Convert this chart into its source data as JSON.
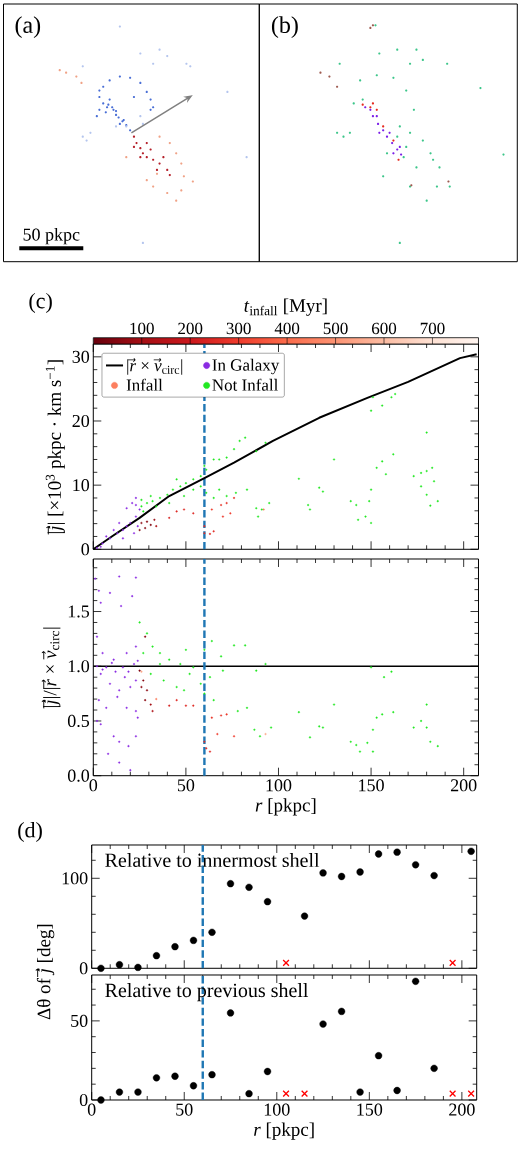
{
  "chart_data": [
    {
      "type": "other",
      "title": "(a)",
      "annotations": [
        "50 pkpc"
      ]
    },
    {
      "type": "other",
      "title": "(b)"
    },
    {
      "type": "scatter",
      "title": "(c)",
      "ylabel": "|*j⃗*| [×10$^{3}$ pkpc · km s$^{−1}$]",
      "clabel": "*t*$_{infall}$ [Myr]",
      "clim": [
        0,
        795
      ],
      "cticks": [
        100,
        200,
        300,
        400,
        500,
        600,
        700
      ],
      "xlim": [
        0,
        208
      ],
      "xticks": [
        0,
        {
          "value": 10,
          "label": null
        },
        {
          "value": 20,
          "label": null
        },
        {
          "value": 30,
          "label": null
        },
        {
          "value": 40,
          "label": null
        },
        50,
        {
          "value": 60,
          "label": null
        },
        {
          "value": 70,
          "label": null
        },
        {
          "value": 80,
          "label": null
        },
        {
          "value": 90,
          "label": null
        },
        100,
        {
          "value": 110,
          "label": null
        },
        {
          "value": 120,
          "label": null
        },
        {
          "value": 130,
          "label": null
        },
        {
          "value": 140,
          "label": null
        },
        150,
        {
          "value": 160,
          "label": null
        },
        {
          "value": 170,
          "label": null
        },
        {
          "value": 180,
          "label": null
        },
        {
          "value": 190,
          "label": null
        },
        200
      ],
      "ylim": [
        0,
        32
      ],
      "yticks": [
        0,
        {
          "value": 2,
          "label": null
        },
        {
          "value": 4,
          "label": null
        },
        {
          "value": 6,
          "label": null
        },
        {
          "value": 8,
          "label": null
        },
        10,
        {
          "value": 12,
          "label": null
        },
        {
          "value": 14,
          "label": null
        },
        {
          "value": 16,
          "label": null
        },
        {
          "value": 18,
          "label": null
        },
        20,
        {
          "value": 22,
          "label": null
        },
        {
          "value": 24,
          "label": null
        },
        {
          "value": 26,
          "label": null
        },
        {
          "value": 28,
          "label": null
        },
        30
      ],
      "tick_labels": "y",
      "legend": "top left",
      "marker": "circle",
      "ref_lines": [
        {
          "axis": "x",
          "value": 60,
          "color": "#1f77b4",
          "line_style": "dashed"
        }
      ],
      "series": [
        {
          "type": "line",
          "name": "|*r⃗* × *v⃗*$_{circ}$|",
          "color": "#000000",
          "marker": "none",
          "x": [
            0,
            10,
            25,
            41,
            60,
            76,
            97,
            122,
            148,
            170,
            198,
            207
          ],
          "values": [
            0,
            2,
            4.9,
            8.3,
            11.1,
            13.5,
            16.9,
            20.5,
            23.6,
            26.1,
            29.8,
            30.4
          ]
        },
        {
          "name": "In Galaxy",
          "color": "#8a2be2",
          "x": [
            2,
            5,
            9,
            13,
            16,
            20,
            23,
            25,
            23,
            21,
            18,
            23,
            14,
            11,
            7,
            18,
            24,
            22,
            16,
            4
          ],
          "values": [
            0.2,
            0.9,
            1.7,
            2.5,
            3,
            4.1,
            5.1,
            6.2,
            6.9,
            7.2,
            6.4,
            8,
            4.1,
            3,
            2,
            3.6,
            3.6,
            2.5,
            1.7,
            0.4
          ]
        },
        {
          "name": "Infall",
          "x": [
            92,
            26,
            29,
            31,
            28,
            33,
            25,
            34,
            45,
            49,
            54,
            41,
            60,
            60,
            63,
            65,
            64,
            69,
            72,
            74,
            70,
            76
          ],
          "values": [
            6.2,
            4.1,
            4.3,
            3.8,
            3.3,
            4.6,
            3,
            3.6,
            5.9,
            6.2,
            5.6,
            4.9,
            3.6,
            2.5,
            2.4,
            2.8,
            6.2,
            6.9,
            7.2,
            5.6,
            5.1,
            8
          ],
          "colors": [
            "#fc7f5f",
            "#8c0912",
            "#8c0912",
            "#800610",
            "#860811",
            "#990c13",
            "#800610",
            "#ad1117",
            "#de2a25",
            "#de2a25",
            "#de2a25",
            "#d62322",
            "#e12e26",
            "#e12e26",
            "#de2a25",
            "#e12e26",
            "#ef3c2d",
            "#e83529",
            "#e53128",
            "#ef3c2d",
            "#ec382b",
            "#e83529"
          ]
        },
        {
          "name": "Not Infall",
          "color": "#22e822",
          "x": [
            26,
            29,
            32,
            36,
            40,
            43,
            47,
            50,
            54,
            58,
            61,
            65,
            68,
            72,
            76,
            79,
            82,
            88,
            93,
            27,
            34,
            41,
            49,
            54,
            61,
            65,
            68,
            60,
            26,
            31,
            45,
            58,
            72,
            83,
            77,
            88,
            91,
            89,
            95,
            111,
            122,
            124,
            116,
            117,
            130,
            139,
            142,
            143,
            147,
            149,
            150,
            150,
            153,
            156,
            158,
            162,
            150,
            151,
            156,
            161,
            163,
            173,
            177,
            177,
            180,
            180,
            183,
            180,
            182,
            186,
            184
          ],
          "values": [
            6.7,
            7.2,
            7.5,
            8,
            8.5,
            9.3,
            9.8,
            10.3,
            10.9,
            11.4,
            12.4,
            14,
            14,
            14.3,
            15.6,
            16.9,
            17.4,
            15.3,
            16.6,
            5.9,
            6.7,
            7.2,
            8.3,
            9.3,
            8.8,
            8,
            9.3,
            13,
            7.7,
            8.3,
            10.9,
            9.8,
            8.3,
            9.3,
            8.8,
            6.4,
            6.2,
            5.1,
            7.2,
            11,
            9.6,
            9,
            6.9,
            6.2,
            14,
            7.5,
            6.9,
            4.6,
            5.1,
            7.5,
            4.1,
            9.3,
            12.7,
            13.7,
            11.7,
            14.8,
            21.6,
            23.7,
            22.4,
            23.7,
            24.2,
            11.4,
            11.9,
            9.8,
            18.2,
            12.2,
            12.7,
            8.5,
            6.8,
            7.5,
            10.6
          ]
        }
      ]
    },
    {
      "type": "scatter",
      "xlabel": "*r* [pkpc]",
      "ylabel": "|*j⃗*|/|*r⃗* × *v⃗*$_{circ}$|",
      "xlim": [
        0,
        208
      ],
      "xticks": [
        0,
        {
          "value": 10,
          "label": null
        },
        {
          "value": 20,
          "label": null
        },
        {
          "value": 30,
          "label": null
        },
        {
          "value": 40,
          "label": null
        },
        50,
        {
          "value": 60,
          "label": null
        },
        {
          "value": 70,
          "label": null
        },
        {
          "value": 80,
          "label": null
        },
        {
          "value": 90,
          "label": null
        },
        100,
        {
          "value": 110,
          "label": null
        },
        {
          "value": 120,
          "label": null
        },
        {
          "value": 130,
          "label": null
        },
        {
          "value": 140,
          "label": null
        },
        150,
        {
          "value": 160,
          "label": null
        },
        {
          "value": 170,
          "label": null
        },
        {
          "value": 180,
          "label": null
        },
        {
          "value": 190,
          "label": null
        },
        200
      ],
      "ylim": [
        0,
        1.98
      ],
      "yticks": [
        {
          "value": 0,
          "label": "0.0"
        },
        {
          "value": 0.1,
          "label": null
        },
        {
          "value": 0.2,
          "label": null
        },
        {
          "value": 0.3,
          "label": null
        },
        {
          "value": 0.4,
          "label": null
        },
        0.5,
        {
          "value": 0.6,
          "label": null
        },
        {
          "value": 0.7,
          "label": null
        },
        {
          "value": 0.8,
          "label": null
        },
        {
          "value": 0.9,
          "label": null
        },
        {
          "value": 1,
          "label": "1.0"
        },
        {
          "value": 1.1,
          "label": null
        },
        {
          "value": 1.2,
          "label": null
        },
        {
          "value": 1.3,
          "label": null
        },
        {
          "value": 1.4,
          "label": null
        },
        1.5,
        {
          "value": 1.6,
          "label": null
        },
        {
          "value": 1.7,
          "label": null
        },
        {
          "value": 1.8,
          "label": null
        },
        {
          "value": 1.9,
          "label": null
        }
      ],
      "marker": "circle",
      "ref_lines": [
        {
          "axis": "y",
          "value": 1,
          "color": "#000000"
        },
        {
          "axis": "x",
          "value": 60,
          "color": "#1f77b4",
          "line_style": "dashed"
        }
      ],
      "series": [
        {
          "color": "#8a2be2",
          "x": [
            1,
            3,
            14,
            23,
            4,
            9,
            15,
            21,
            2,
            5,
            11,
            18,
            23,
            4,
            9,
            14,
            20,
            23,
            3,
            7,
            13,
            18,
            23,
            2,
            4,
            11,
            14,
            19,
            23,
            24,
            7,
            16,
            22,
            14,
            20,
            8,
            5,
            12,
            19,
            24,
            10,
            17,
            2
          ],
          "values": [
            1.8,
            1.69,
            1.82,
            1.81,
            1.58,
            1.67,
            1.55,
            1.64,
            1.27,
            1.12,
            1.06,
            1.12,
            1.18,
            0.93,
            0.84,
            0.78,
            0.81,
            0.87,
            0.69,
            0.62,
            0.72,
            0.62,
            0.59,
            0.5,
            0.47,
            0.36,
            0.31,
            0.27,
            0.36,
            0.53,
            0.99,
            0.99,
            1.02,
            0.12,
            0.05,
            0.2,
            0.97,
            0.95,
            0.95,
            1.05,
            1.03,
            0.9,
            1.0
          ]
        },
        {
          "x": [
            25,
            27,
            26,
            29,
            28,
            31,
            28,
            26,
            34,
            41,
            45,
            50,
            54,
            64,
            69,
            72,
            76,
            67,
            60,
            61,
            63,
            93,
            32
          ],
          "values": [
            0.96,
            0.87,
            0.81,
            0.78,
            1.27,
            0.65,
            0.69,
            0.95,
            0.7,
            0.64,
            0.69,
            0.64,
            0.64,
            0.53,
            0.55,
            0.56,
            0.36,
            0.38,
            0.31,
            0.25,
            0.22,
            0.38,
            0.59
          ],
          "colors": [
            "#800610",
            "#860811",
            "#8c0912",
            "#8c0912",
            "#860811",
            "#a50f15",
            "#8c0912",
            "#fca88b",
            "#fc7f5f",
            "#d62322",
            "#de2a25",
            "#de2a25",
            "#e12e26",
            "#e83529",
            "#e83529",
            "#ec382b",
            "#ef3c2d",
            "#ef3c2d",
            "#e12e26",
            "#e12e26",
            "#de2a25",
            "#fca88b",
            "#ad1117"
          ]
        },
        {
          "color": "#22e822",
          "x": [
            27,
            32,
            36,
            41,
            47,
            50,
            54,
            60,
            64,
            69,
            76,
            82,
            31,
            38,
            45,
            49,
            58,
            63,
            70,
            65,
            60,
            29,
            25,
            36,
            52,
            78,
            83,
            88,
            93,
            87,
            90,
            96,
            111,
            117,
            122,
            124,
            130,
            139,
            142,
            144,
            148,
            151,
            150,
            153,
            156,
            162,
            161,
            157,
            173,
            177,
            180,
            180,
            182,
            186,
            151
          ],
          "values": [
            1.12,
            1.18,
            1.12,
            1.06,
            1.02,
            1.15,
            0.99,
            1.15,
            1.23,
            1.09,
            1.19,
            1.19,
            0.93,
            0.87,
            0.81,
            0.78,
            0.84,
            0.9,
            0.96,
            0.69,
            0.75,
            1.3,
            1.4,
            1.02,
            0.93,
            0.59,
            0.62,
            0.96,
            1.02,
            0.42,
            0.36,
            0.44,
            0.58,
            0.35,
            0.45,
            0.44,
            0.65,
            0.31,
            0.28,
            0.22,
            0.3,
            0.42,
            0.99,
            0.53,
            0.56,
            0.58,
            0.95,
            0.9,
            0.44,
            0.5,
            0.44,
            0.65,
            0.31,
            0.27,
            0.22
          ]
        }
      ]
    },
    {
      "type": "scatter",
      "title": "(d)",
      "ylabel": "Δθ of *j⃗* [deg]",
      "annotations": [
        "Relative to innermost shell"
      ],
      "x": [
        5,
        15,
        25,
        35,
        45,
        55,
        65,
        75,
        85,
        95,
        105,
        115,
        125,
        135,
        145,
        155,
        165,
        175,
        185,
        195,
        205
      ],
      "xlim": [
        0,
        208
      ],
      "xticks": [
        0,
        {
          "value": 10,
          "label": null
        },
        {
          "value": 20,
          "label": null
        },
        {
          "value": 30,
          "label": null
        },
        {
          "value": 40,
          "label": null
        },
        50,
        {
          "value": 60,
          "label": null
        },
        {
          "value": 70,
          "label": null
        },
        {
          "value": 80,
          "label": null
        },
        {
          "value": 90,
          "label": null
        },
        100,
        {
          "value": 110,
          "label": null
        },
        {
          "value": 120,
          "label": null
        },
        {
          "value": 130,
          "label": null
        },
        {
          "value": 140,
          "label": null
        },
        150,
        {
          "value": 160,
          "label": null
        },
        {
          "value": 170,
          "label": null
        },
        {
          "value": 180,
          "label": null
        },
        {
          "value": 190,
          "label": null
        },
        200
      ],
      "ylim": [
        0,
        137
      ],
      "yticks": [
        0,
        {
          "value": 20,
          "label": null
        },
        {
          "value": 40,
          "label": null
        },
        {
          "value": 60,
          "label": null
        },
        {
          "value": 80,
          "label": null
        },
        100,
        {
          "value": 120,
          "label": null
        }
      ],
      "tick_labels": "y",
      "marker": "circle",
      "ref_lines": [
        {
          "axis": "x",
          "value": 60,
          "color": "#1f77b4",
          "line_style": "dashed"
        }
      ],
      "series": [
        {
          "color": "#000000",
          "values": [
            0,
            4,
            1,
            14,
            24,
            31,
            40,
            94,
            90,
            74,
            null,
            58,
            106,
            102,
            107,
            127,
            129,
            115,
            103,
            null,
            130
          ]
        },
        {
          "color": "#ff0000",
          "marker": "cross",
          "values": [
            null,
            null,
            null,
            null,
            null,
            null,
            null,
            null,
            null,
            null,
            6,
            null,
            null,
            null,
            null,
            null,
            null,
            null,
            null,
            6,
            null
          ]
        }
      ]
    },
    {
      "type": "scatter",
      "xlabel": "*r* [pkpc]",
      "annotations": [
        "Relative to previous shell"
      ],
      "x": [
        5,
        15,
        25,
        35,
        45,
        55,
        65,
        75,
        85,
        95,
        105,
        115,
        125,
        135,
        145,
        155,
        165,
        175,
        185,
        195,
        205
      ],
      "xlim": [
        0,
        208
      ],
      "xticks": [
        0,
        {
          "value": 10,
          "label": null
        },
        {
          "value": 20,
          "label": null
        },
        {
          "value": 30,
          "label": null
        },
        {
          "value": 40,
          "label": null
        },
        50,
        {
          "value": 60,
          "label": null
        },
        {
          "value": 70,
          "label": null
        },
        {
          "value": 80,
          "label": null
        },
        {
          "value": 90,
          "label": null
        },
        100,
        {
          "value": 110,
          "label": null
        },
        {
          "value": 120,
          "label": null
        },
        {
          "value": 130,
          "label": null
        },
        {
          "value": 140,
          "label": null
        },
        150,
        {
          "value": 160,
          "label": null
        },
        {
          "value": 170,
          "label": null
        },
        {
          "value": 180,
          "label": null
        },
        {
          "value": 190,
          "label": null
        },
        200
      ],
      "ylim": [
        0,
        79
      ],
      "yticks": [
        0,
        {
          "value": 10,
          "label": null
        },
        {
          "value": 20,
          "label": null
        },
        {
          "value": 30,
          "label": null
        },
        {
          "value": 40,
          "label": null
        },
        50,
        {
          "value": 60,
          "label": null
        },
        {
          "value": 70,
          "label": null
        }
      ],
      "marker": "circle",
      "ref_lines": [
        {
          "axis": "x",
          "value": 60,
          "color": "#1f77b4",
          "line_style": "dashed"
        }
      ],
      "series": [
        {
          "color": "#000000",
          "values": [
            0,
            5,
            5,
            14,
            15,
            9,
            16,
            55,
            4,
            18,
            null,
            null,
            48,
            56,
            5,
            28,
            6,
            75,
            20,
            null,
            null
          ]
        },
        {
          "color": "#ff0000",
          "marker": "cross",
          "values": [
            null,
            null,
            null,
            null,
            null,
            null,
            null,
            null,
            null,
            null,
            4,
            4,
            null,
            null,
            null,
            null,
            null,
            null,
            null,
            4,
            4
          ]
        }
      ]
    }
  ]
}
